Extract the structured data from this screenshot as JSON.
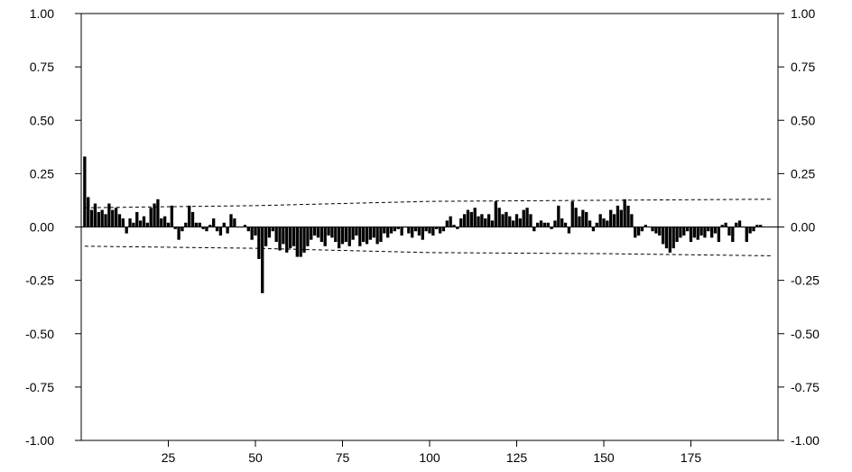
{
  "chart_data": {
    "type": "bar",
    "title": "",
    "xlabel": "",
    "ylabel": "",
    "xlim": [
      0,
      200
    ],
    "ylim": [
      -1.0,
      1.0
    ],
    "x_ticks": [
      25,
      50,
      75,
      100,
      125,
      150,
      175
    ],
    "x_tick_labels": [
      "25",
      "50",
      "75",
      "100",
      "125",
      "150",
      "175"
    ],
    "y_ticks": [
      1.0,
      0.75,
      0.5,
      0.25,
      0.0,
      -0.25,
      -0.5,
      -0.75,
      -1.0
    ],
    "y_tick_labels": [
      "1.00",
      "0.75",
      "0.50",
      "0.25",
      "0.00",
      "-0.25",
      "-0.50",
      "-0.75",
      "-1.00"
    ],
    "grid": false,
    "colors": {
      "bars": "#000000",
      "axes": "#000000",
      "bands": "#000000",
      "background": "#ffffff"
    },
    "lags": [
      1,
      198
    ],
    "values": [
      0.33,
      0.14,
      0.08,
      0.11,
      0.07,
      0.08,
      0.06,
      0.11,
      0.08,
      0.09,
      0.06,
      0.04,
      -0.03,
      0.04,
      0.02,
      0.07,
      0.03,
      0.05,
      0.02,
      0.09,
      0.11,
      0.13,
      0.04,
      0.05,
      0.02,
      0.1,
      -0.01,
      -0.06,
      -0.02,
      0.02,
      0.1,
      0.07,
      0.02,
      0.02,
      -0.01,
      -0.02,
      0.01,
      0.04,
      -0.02,
      -0.04,
      0.02,
      -0.03,
      0.06,
      0.04,
      0.0,
      0.0,
      0.01,
      -0.02,
      -0.06,
      -0.04,
      -0.15,
      -0.31,
      -0.09,
      -0.05,
      -0.02,
      -0.07,
      -0.11,
      -0.08,
      -0.12,
      -0.1,
      -0.09,
      -0.14,
      -0.14,
      -0.12,
      -0.09,
      -0.06,
      -0.04,
      -0.05,
      -0.07,
      -0.09,
      -0.04,
      -0.05,
      -0.07,
      -0.1,
      -0.08,
      -0.07,
      -0.09,
      -0.06,
      -0.04,
      -0.09,
      -0.07,
      -0.08,
      -0.06,
      -0.05,
      -0.08,
      -0.07,
      -0.03,
      -0.05,
      -0.03,
      -0.02,
      -0.01,
      -0.04,
      0.0,
      -0.03,
      -0.05,
      -0.02,
      -0.04,
      -0.06,
      -0.02,
      -0.03,
      -0.04,
      -0.01,
      -0.03,
      -0.02,
      0.03,
      0.05,
      0.01,
      -0.01,
      0.04,
      0.06,
      0.08,
      0.07,
      0.09,
      0.05,
      0.06,
      0.04,
      0.06,
      0.03,
      0.12,
      0.09,
      0.06,
      0.07,
      0.05,
      0.03,
      0.06,
      0.04,
      0.08,
      0.09,
      0.06,
      -0.02,
      0.02,
      0.03,
      0.02,
      0.02,
      -0.01,
      0.03,
      0.1,
      0.04,
      0.02,
      -0.03,
      0.12,
      0.09,
      0.05,
      0.08,
      0.07,
      0.03,
      -0.02,
      0.02,
      0.06,
      0.04,
      0.03,
      0.08,
      0.06,
      0.1,
      0.08,
      0.13,
      0.1,
      0.06,
      -0.05,
      -0.04,
      -0.02,
      0.01,
      0.0,
      -0.02,
      -0.03,
      -0.04,
      -0.08,
      -0.1,
      -0.12,
      -0.1,
      -0.07,
      -0.05,
      -0.04,
      -0.02,
      -0.07,
      -0.05,
      -0.06,
      -0.04,
      -0.05,
      -0.02,
      -0.05,
      -0.03,
      -0.07,
      0.01,
      0.02,
      -0.04,
      -0.07,
      0.02,
      0.03,
      0.0,
      -0.07,
      -0.03,
      -0.02,
      0.01,
      0.01
    ],
    "confidence_band_upper": [
      [
        1,
        0.09
      ],
      [
        50,
        0.1
      ],
      [
        75,
        0.11
      ],
      [
        100,
        0.12
      ],
      [
        150,
        0.125
      ],
      [
        198,
        0.13
      ]
    ],
    "confidence_band_lower": [
      [
        1,
        -0.09
      ],
      [
        50,
        -0.1
      ],
      [
        75,
        -0.11
      ],
      [
        100,
        -0.12
      ],
      [
        150,
        -0.125
      ],
      [
        198,
        -0.135
      ]
    ]
  }
}
